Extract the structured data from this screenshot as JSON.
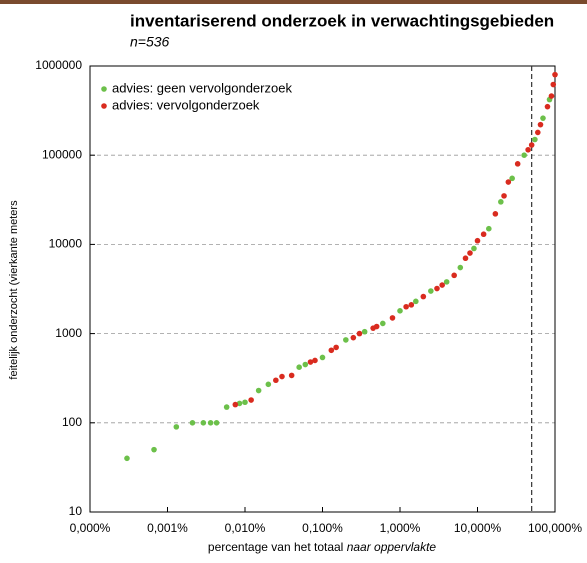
{
  "chart_data": {
    "type": "scatter",
    "title": "inventariserend onderzoek in verwachtingsgebieden",
    "subtitle": "n=536",
    "xlabel": "percentage van het totaal",
    "xlabel_emphasis": "naar oppervlakte",
    "ylabel": "feitelijk onderzocht (vierkante meters",
    "xscale": "log",
    "yscale": "log",
    "xlim": [
      0.0001,
      100
    ],
    "ylim": [
      10,
      1000000
    ],
    "xticks": [
      {
        "value": 0.0001,
        "label": "0,000%"
      },
      {
        "value": 0.001,
        "label": "0,001%"
      },
      {
        "value": 0.01,
        "label": "0,010%"
      },
      {
        "value": 0.1,
        "label": "0,100%"
      },
      {
        "value": 1,
        "label": "1,000%"
      },
      {
        "value": 10,
        "label": "10,000%"
      },
      {
        "value": 100,
        "label": "100,000%"
      }
    ],
    "yticks": [
      10,
      100,
      1000,
      10000,
      100000,
      1000000
    ],
    "grid": true,
    "vline": 50,
    "legend": "upper left",
    "series": [
      {
        "name": "advies: geen vervolgonderzoek",
        "color": "#6cc04a",
        "x": [
          0.0003,
          0.00067,
          0.0013,
          0.0021,
          0.0029,
          0.0036,
          0.0043,
          0.0058,
          0.0085,
          0.01,
          0.015,
          0.02,
          0.05,
          0.06,
          0.1,
          0.2,
          0.35,
          0.6,
          1,
          1.6,
          2.5,
          4,
          6,
          9,
          14,
          20,
          28,
          40,
          55,
          70,
          85
        ],
        "values": [
          40,
          50,
          90,
          100,
          100,
          100,
          100,
          150,
          165,
          170,
          230,
          270,
          420,
          450,
          540,
          850,
          1050,
          1300,
          1800,
          2300,
          3000,
          3800,
          5500,
          9000,
          15000,
          30000,
          55000,
          100000,
          150000,
          260000,
          420000
        ]
      },
      {
        "name": "advies: vervolgonderzoek",
        "color": "#d92b1f",
        "x": [
          0.0075,
          0.012,
          0.025,
          0.03,
          0.04,
          0.07,
          0.08,
          0.13,
          0.15,
          0.25,
          0.3,
          0.45,
          0.5,
          0.8,
          1.2,
          1.4,
          2,
          3,
          3.5,
          5,
          7,
          8,
          10,
          12,
          17,
          22,
          25,
          33,
          45,
          50,
          60,
          65,
          80,
          90,
          95,
          100
        ],
        "values": [
          160,
          180,
          300,
          330,
          340,
          480,
          500,
          650,
          700,
          900,
          1000,
          1150,
          1200,
          1500,
          2000,
          2100,
          2600,
          3200,
          3500,
          4500,
          7000,
          8000,
          11000,
          13000,
          22000,
          35000,
          50000,
          80000,
          115000,
          130000,
          180000,
          220000,
          350000,
          460000,
          620000,
          800000
        ]
      }
    ]
  }
}
